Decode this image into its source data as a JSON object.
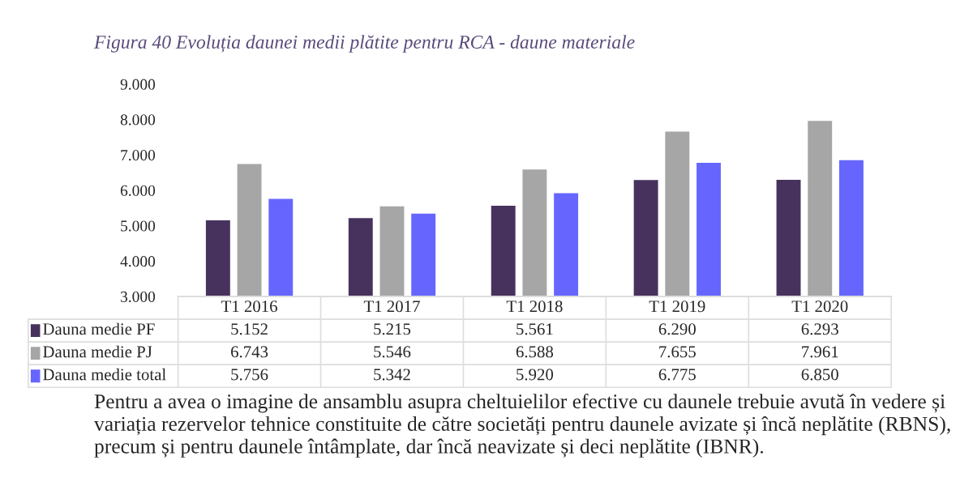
{
  "chart_data": {
    "type": "bar",
    "title": "Figura 40 Evoluția daunei medii plătite pentru RCA - daune materiale",
    "categories": [
      "T1 2016",
      "T1 2017",
      "T1 2018",
      "T1 2019",
      "T1 2020"
    ],
    "series": [
      {
        "name": "Dauna medie PF",
        "color": "#47325e",
        "values": [
          5152,
          5215,
          5561,
          6290,
          6293
        ],
        "value_labels": [
          "5.152",
          "5.215",
          "5.561",
          "6.290",
          "6.293"
        ]
      },
      {
        "name": "Dauna medie PJ",
        "color": "#a6a6a6",
        "values": [
          6743,
          5546,
          6588,
          7655,
          7961
        ],
        "value_labels": [
          "6.743",
          "5.546",
          "6.588",
          "7.655",
          "7.961"
        ]
      },
      {
        "name": "Dauna medie total",
        "color": "#6666ff",
        "values": [
          5756,
          5342,
          5920,
          6775,
          6850
        ],
        "value_labels": [
          "5.756",
          "5.342",
          "5.920",
          "6.775",
          "6.850"
        ]
      }
    ],
    "ylim": [
      3000,
      9000
    ],
    "yticks": [
      {
        "value": 3000,
        "label": "3.000"
      },
      {
        "value": 4000,
        "label": "4.000"
      },
      {
        "value": 5000,
        "label": "5.000"
      },
      {
        "value": 6000,
        "label": "6.000"
      },
      {
        "value": 7000,
        "label": "7.000"
      },
      {
        "value": 8000,
        "label": "8.000"
      },
      {
        "value": 9000,
        "label": "9.000"
      }
    ],
    "grid": false,
    "legend": "bottom left",
    "annotations": [
      "Pentru a avea o imagine de ansamblu asupra cheltuielilor efective cu daunele trebuie avută în vedere și variația rezervelor tehnice constituite de către societăți pentru daunele avizate și încă neplătite (RBNS), precum și pentru daunele întâmplate, dar încă neavizate și deci neplătite (IBNR)."
    ]
  }
}
